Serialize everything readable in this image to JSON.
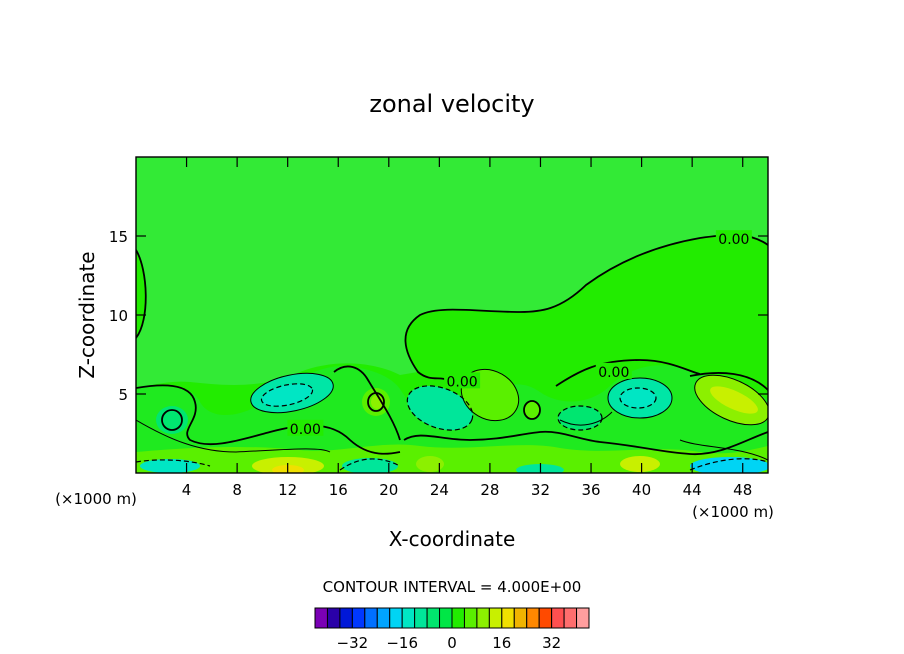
{
  "chart_data": {
    "type": "contour",
    "title": "zonal velocity",
    "xlabel": "X-coordinate",
    "ylabel": "Z-coordinate",
    "x_unit": "(×1000 m)",
    "y_unit": "(×1000 m)",
    "xlim": [
      0,
      50
    ],
    "ylim": [
      0,
      20
    ],
    "x_ticks": [
      4,
      8,
      12,
      16,
      20,
      24,
      28,
      32,
      36,
      40,
      44,
      48
    ],
    "y_ticks": [
      5,
      10,
      15
    ],
    "contour_interval_text": "CONTOUR INTERVAL = 4.000E+00",
    "contour_interval": 4.0,
    "contour_labels": [
      {
        "text": "0.00",
        "x": 47.3,
        "z": 14.8
      },
      {
        "text": "0.00",
        "x": 37.8,
        "z": 6.4
      },
      {
        "text": "0.00",
        "x": 25.8,
        "z": 5.8
      },
      {
        "text": "0.00",
        "x": 13.4,
        "z": 2.8
      }
    ],
    "colorbar": {
      "levels": [
        -40,
        -36,
        -32,
        -28,
        -24,
        -20,
        -16,
        -12,
        -8,
        -4,
        0,
        4,
        8,
        12,
        16,
        20,
        24,
        28,
        32,
        36,
        40
      ],
      "colors": [
        "#7a00b5",
        "#2a00a8",
        "#0018d8",
        "#0038ff",
        "#0070ff",
        "#00a4ff",
        "#00d4f4",
        "#00e6c4",
        "#00e69a",
        "#00e66e",
        "#00e646",
        "#22ec00",
        "#5af000",
        "#8cf000",
        "#c8f000",
        "#f0e000",
        "#f0b400",
        "#ff8800",
        "#ff4a00",
        "#ff5050",
        "#ff6e6e",
        "#ff9e9e"
      ],
      "tick_labels": [
        "-32",
        "-16",
        "0",
        "16",
        "32"
      ],
      "tick_values": [
        -32,
        -16,
        0,
        16,
        32
      ]
    }
  }
}
